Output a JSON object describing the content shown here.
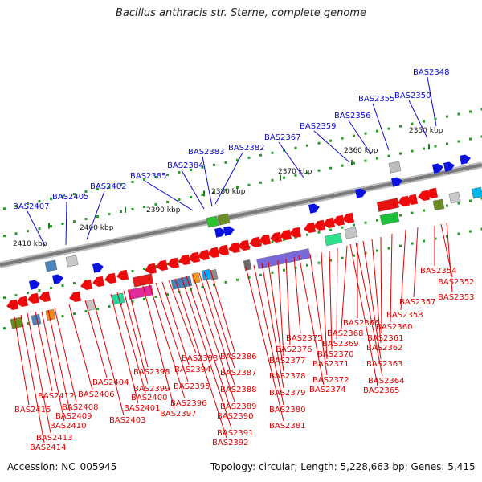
{
  "title": "Bacillus anthracis str. Sterne, complete genome",
  "footer": {
    "accession": "Accession: NC_005945",
    "topology": "Topology: circular; Length: 5,228,663 bp; Genes: 5,415"
  },
  "colors": {
    "forward_label": "#0a0ad0",
    "reverse_label": "#e00000",
    "backbone": "#7a7a7a",
    "tick": "#2a9a2a"
  },
  "scale_labels": [
    "2350 kbp",
    "2360 kbp",
    "2370 kbp",
    "2380 kbp",
    "2390 kbp",
    "2400 kbp",
    "2410 kbp"
  ],
  "forward_genes": [
    "BAS2348",
    "BAS2350",
    "BAS2355",
    "BAS2356",
    "BAS2359",
    "BAS2367",
    "BAS2382",
    "BAS2383",
    "BAS2384",
    "BAS2385",
    "BAS2402",
    "BAS2405",
    "BAS2407"
  ],
  "reverse_genes": [
    "BAS2352",
    "BAS2353",
    "BAS2354",
    "BAS2357",
    "BAS2358",
    "BAS2360",
    "BAS2361",
    "BAS2362",
    "BAS2363",
    "BAS2364",
    "BAS2365",
    "BAS2366",
    "BAS2368",
    "BAS2369",
    "BAS2370",
    "BAS2371",
    "BAS2372",
    "BAS2374",
    "BAS2375",
    "BAS2376",
    "BAS2377",
    "BAS2378",
    "BAS2379",
    "BAS2380",
    "BAS2381",
    "BAS2386",
    "BAS2387",
    "BAS2388",
    "BAS2389",
    "BAS2390",
    "BAS2391",
    "BAS2392",
    "BAS2393",
    "BAS2394",
    "BAS2395",
    "BAS2396",
    "BAS2397",
    "BAS2398",
    "BAS2399",
    "BAS2400",
    "BAS2401",
    "BAS2403",
    "BAS2404",
    "BAS2406",
    "BAS2408",
    "BAS2409",
    "BAS2410",
    "BAS2412",
    "BAS2413",
    "BAS2414",
    "BAS2415"
  ]
}
